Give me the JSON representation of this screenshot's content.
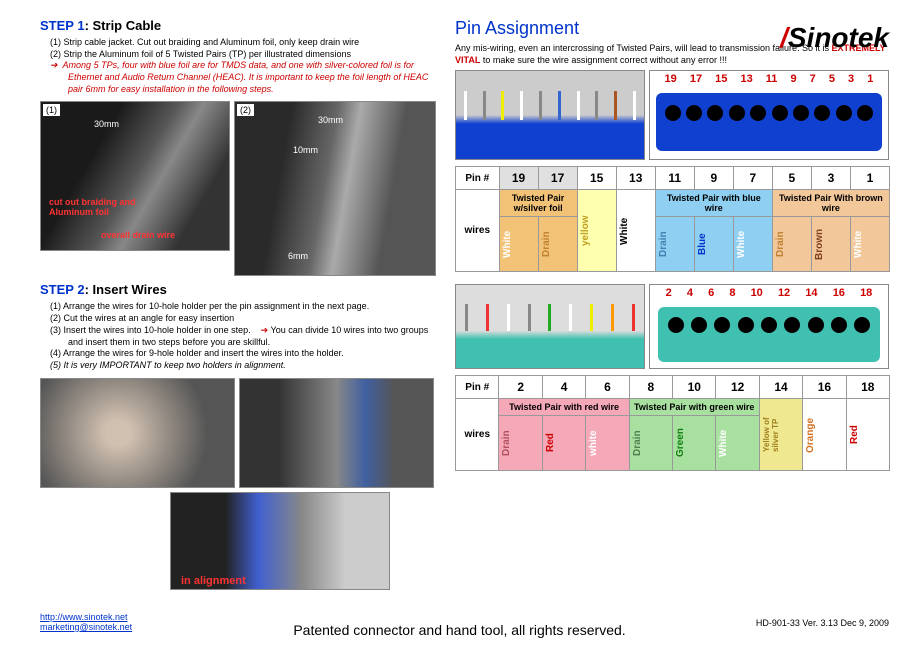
{
  "logo": {
    "text": "Sinotek"
  },
  "left": {
    "step1_title": "STEP 1",
    "step1_sub": ": Strip Cable",
    "step1_items": [
      "(1)  Strip cable jacket. Cut out braiding and Aluminum foil, only keep drain wire",
      "(2)  Strip the Aluminum foil of 5 Twisted Pairs (TP) per illustrated dimensions"
    ],
    "step1_arrow": "Among 5 TPs, four with blue foil are for TMDS data, and one with silver-colored foil is for Ethernet and Audio Return Channel (HEAC). It is important to keep the foil length of HEAC pair 6mm for easy installation in the following steps.",
    "step1_img1_n": "(1)",
    "step1_img1_dim": "30mm",
    "step1_img1_red1": "cut out braiding and\nAluminum foil",
    "step1_img1_red2": "overall drain wire",
    "step1_img2_n": "(2)",
    "step1_img2_dim1": "30mm",
    "step1_img2_dim2": "10mm",
    "step1_img2_dim3": "6mm",
    "step2_title": "STEP 2",
    "step2_sub": ": Insert Wires",
    "step2_items": [
      "(1)  Arrange the wires for 10-hole holder per the pin assignment in the next page.",
      "(2)  Cut the wires at an angle for easy insertion",
      "(3)  Insert the wires into 10-hole holder in one step.",
      "(4)  Arrange the wires for 9-hole holder and insert the wires into the holder."
    ],
    "step2_item3_tip": "You can divide 10 wires into two groups and insert them in two steps before you are skillful.",
    "step2_item5": "(5)  It is very IMPORTANT to keep two holders in alignment.",
    "step2_img3_label": "in alignment"
  },
  "right": {
    "title": "Pin Assignment",
    "desc1": "Any mis-wiring, even an intercrossing of Twisted Pairs, will lead to transmission failure. So it is ",
    "vital": "EXTREMELY VITAL",
    "desc2": " to make sure the wire assignment correct without any error !!!",
    "table1": {
      "nums": [
        "19",
        "17",
        "15",
        "13",
        "11",
        "9",
        "7",
        "5",
        "3",
        "1"
      ],
      "groups": [
        {
          "label": "Twisted Pair w/silver foil",
          "span": 2,
          "bg": "#f2c277"
        },
        {
          "label": "",
          "span": 1,
          "bg": "#ffffb0"
        },
        {
          "label": "",
          "span": 1,
          "bg": "#ffffff"
        },
        {
          "label": "Twisted Pair with blue wire",
          "span": 3,
          "bg": "#8fd0f2"
        },
        {
          "label": "Twisted Pair With brown wire",
          "span": 3,
          "bg": "#f2c79a"
        }
      ],
      "wires": [
        {
          "t": "White",
          "bg": "#f2c277",
          "c": "#fff"
        },
        {
          "t": "Drain",
          "bg": "#f2c277",
          "c": "#c08030"
        },
        {
          "t": "yellow",
          "bg": "#ffffb0",
          "c": "#c0a020",
          "rs": 1
        },
        {
          "t": "White",
          "bg": "#ffffff",
          "c": "#000",
          "rs": 1
        },
        {
          "t": "Drain",
          "bg": "#8fd0f2",
          "c": "#4080b0"
        },
        {
          "t": "Blue",
          "bg": "#8fd0f2",
          "c": "#0033cc"
        },
        {
          "t": "White",
          "bg": "#8fd0f2",
          "c": "#fff"
        },
        {
          "t": "Drain",
          "bg": "#f2c79a",
          "c": "#c08030"
        },
        {
          "t": "Brown",
          "bg": "#f2c79a",
          "c": "#804020"
        },
        {
          "t": "White",
          "bg": "#f2c79a",
          "c": "#fff"
        }
      ],
      "pin_bgs": [
        "#e0e0e0",
        "#e0e0e0",
        "#ffffff",
        "#ffffff",
        "#ffffff",
        "#ffffff",
        "#ffffff",
        "#ffffff",
        "#ffffff",
        "#ffffff"
      ],
      "connector_color": "#1040d0"
    },
    "table2": {
      "nums": [
        "2",
        "4",
        "6",
        "8",
        "10",
        "12",
        "14",
        "16",
        "18"
      ],
      "groups": [
        {
          "label": "Twisted Pair with red wire",
          "span": 3,
          "bg": "#f5a8b8"
        },
        {
          "label": "Twisted Pair with green wire",
          "span": 3,
          "bg": "#a8e0a0"
        },
        {
          "label": "",
          "span": 1,
          "bg": "#f0e890"
        },
        {
          "label": "",
          "span": 1,
          "bg": "#ffffff"
        },
        {
          "label": "",
          "span": 1,
          "bg": "#ffffff"
        }
      ],
      "wires": [
        {
          "t": "Drain",
          "bg": "#f5a8b8",
          "c": "#b05060"
        },
        {
          "t": "Red",
          "bg": "#f5a8b8",
          "c": "#cc0000"
        },
        {
          "t": "white",
          "bg": "#f5a8b8",
          "c": "#fff"
        },
        {
          "t": "Drain",
          "bg": "#a8e0a0",
          "c": "#508050"
        },
        {
          "t": "Green",
          "bg": "#a8e0a0",
          "c": "#108010"
        },
        {
          "t": "White",
          "bg": "#a8e0a0",
          "c": "#fff"
        },
        {
          "t": "Yellow of silver TP",
          "bg": "#f0e890",
          "c": "#a08020",
          "rs": 1,
          "small": 1
        },
        {
          "t": "Orange",
          "bg": "#ffffff",
          "c": "#d07020",
          "rs": 1
        },
        {
          "t": "Red",
          "bg": "#ffffff",
          "c": "#cc0000",
          "rs": 1
        }
      ],
      "connector_color": "#40c0b0"
    },
    "pin_label": "Pin #",
    "wires_label": "wires"
  },
  "footer": {
    "text": "Patented connector and hand tool, all rights reserved.",
    "link1": "http://www.sinotek.net",
    "link2": "marketing@sinotek.net",
    "meta": "HD-901-33    Ver. 3.13    Dec 9, 2009"
  },
  "colors": {
    "blue": "#0033cc",
    "red": "#cc0000"
  }
}
